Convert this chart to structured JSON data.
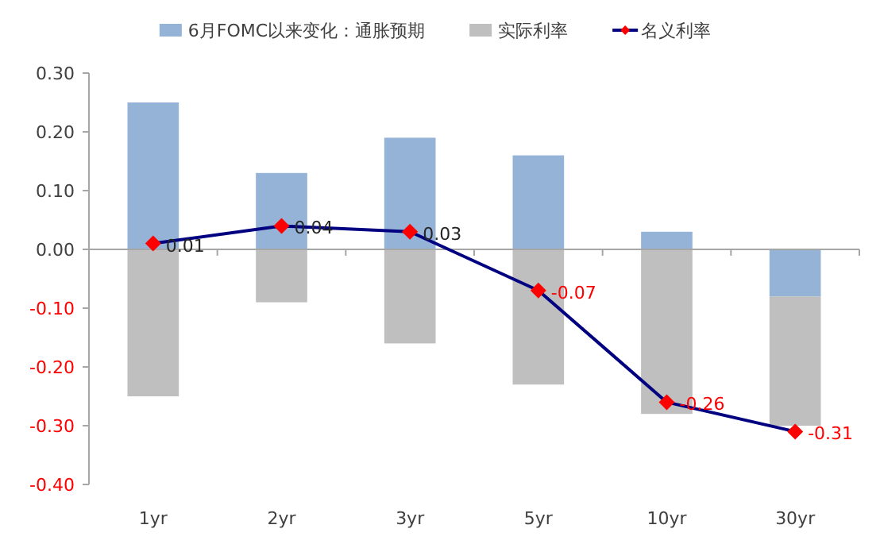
{
  "chart_data": {
    "type": "bar",
    "stacked": true,
    "categories": [
      "1yr",
      "2yr",
      "3yr",
      "5yr",
      "10yr",
      "30yr"
    ],
    "series": [
      {
        "name": "6月FOMC以来变化：通胀预期",
        "color": "#95b3d7",
        "values": [
          0.25,
          0.13,
          0.19,
          0.16,
          0.03,
          -0.08
        ]
      },
      {
        "name": "实际利率",
        "color": "#bfbfbf",
        "values": [
          -0.25,
          -0.09,
          -0.16,
          -0.23,
          -0.28,
          -0.22
        ]
      },
      {
        "name": "名义利率",
        "type": "line",
        "color": "#000080",
        "marker": "diamond",
        "colors": [
          "#ff0000",
          "#ff0000",
          "#ff0000",
          "#ff0000",
          "#ff0000",
          "#ff0000"
        ],
        "data_labels": true,
        "values": [
          0.01,
          0.04,
          0.03,
          -0.07,
          -0.26,
          -0.31
        ]
      }
    ],
    "ylim": [
      -0.4,
      0.3
    ],
    "yticks": [
      {
        "value": 0.3,
        "label": "0.30"
      },
      {
        "value": 0.2,
        "label": "0.20"
      },
      {
        "value": 0.1,
        "label": "0.10"
      },
      {
        "value": 0,
        "label": "0.00"
      },
      {
        "value": -0.1,
        "label": "-0.10"
      },
      {
        "value": -0.2,
        "label": "-0.20"
      },
      {
        "value": -0.3,
        "label": "-0.30"
      },
      {
        "value": -0.4,
        "label": "-0.40"
      }
    ],
    "legend": "top"
  }
}
